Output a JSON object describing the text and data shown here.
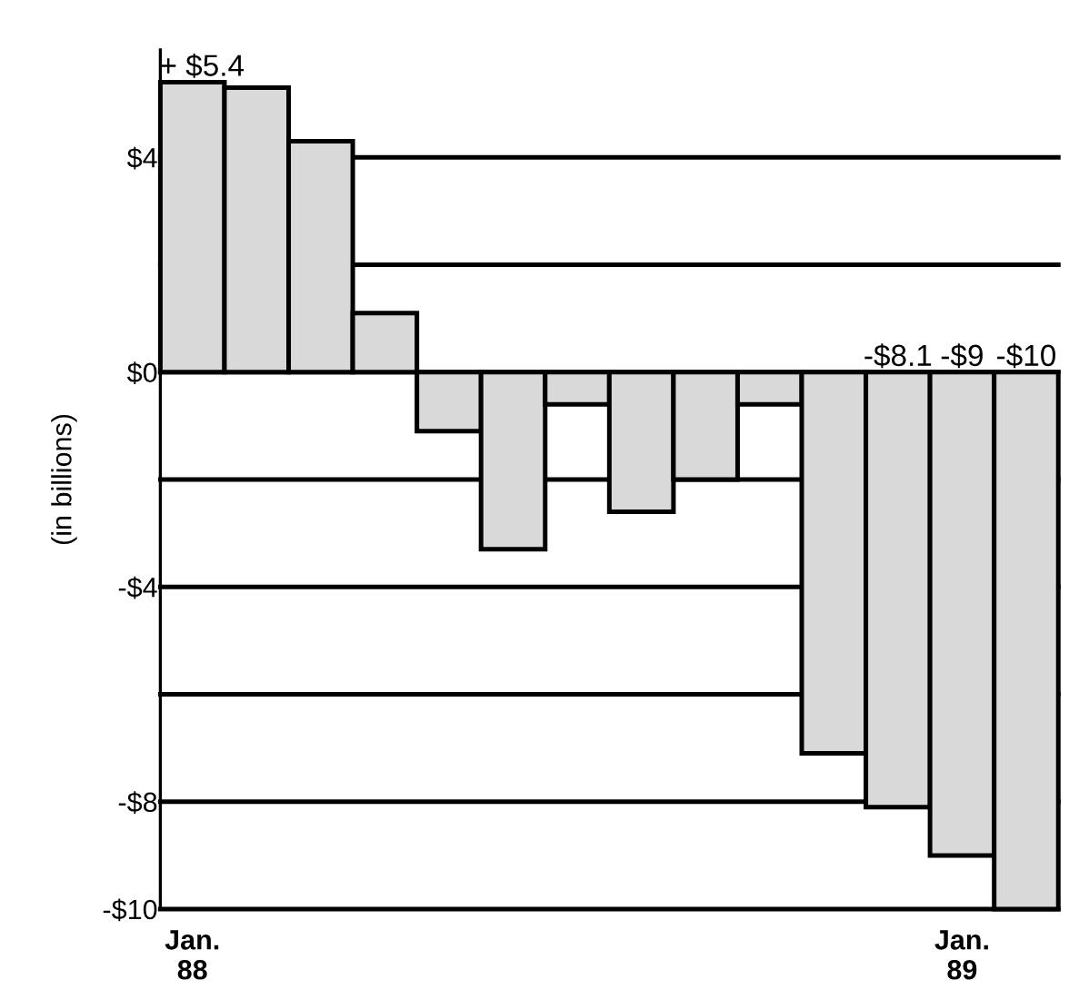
{
  "chart_data": {
    "type": "bar",
    "ylabel": "(in billions)",
    "categories": [
      "Jan.\n88",
      null,
      null,
      null,
      null,
      null,
      null,
      null,
      null,
      null,
      null,
      null,
      "Jan.\n89",
      null
    ],
    "values": [
      5.4,
      5.3,
      4.3,
      1.1,
      -1.1,
      -3.3,
      -0.6,
      -2.6,
      -2.0,
      -0.6,
      -7.1,
      -8.1,
      -9,
      -10
    ],
    "value_labels": [
      "+ $5.4",
      null,
      null,
      null,
      null,
      null,
      null,
      null,
      null,
      null,
      null,
      "-$8.1",
      "-$9",
      "-$10"
    ],
    "color": "#d9d9d9",
    "ylim": [
      -10,
      6
    ],
    "yticks": [
      {
        "value": 4,
        "label": "$4"
      },
      {
        "value": 2,
        "label": null
      },
      {
        "value": 0,
        "label": "$0"
      },
      {
        "value": -2,
        "label": null
      },
      {
        "value": -4,
        "label": "-$4"
      },
      {
        "value": -6,
        "label": null
      },
      {
        "value": -8,
        "label": "-$8"
      },
      {
        "value": -10,
        "label": "-$10"
      }
    ],
    "grid": "y"
  }
}
